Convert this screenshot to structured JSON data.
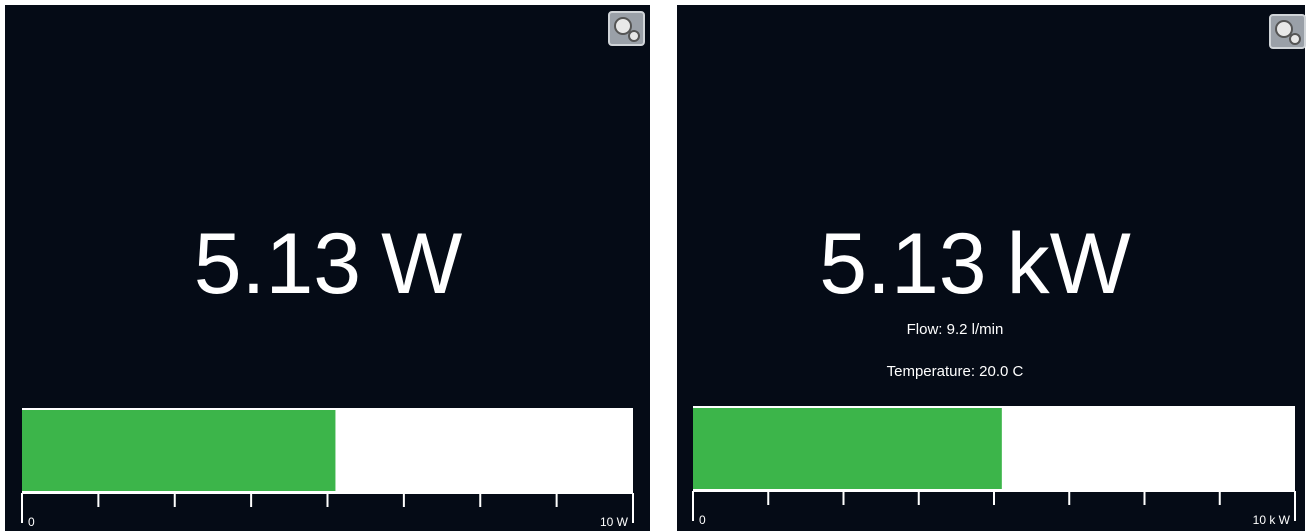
{
  "panels": [
    {
      "value": 5.13,
      "unit": "W",
      "details": [],
      "xlim": [
        0,
        10
      ],
      "xticks": [
        0,
        1.25,
        2.5,
        3.75,
        5,
        6.25,
        7.5,
        8.75,
        10
      ],
      "tick_labels": [
        0,
        {
          "value": 10,
          "label": "10 W"
        }
      ],
      "bar_color": "#3cb54a"
    },
    {
      "value": 5.13,
      "unit": "kW",
      "details": [
        "Flow: 9.2 l/min",
        "Temperature: 20.0 C"
      ],
      "xlim": [
        0,
        10
      ],
      "xticks": [
        0,
        1.25,
        2.5,
        3.75,
        5,
        6.25,
        7.5,
        8.75,
        10
      ],
      "tick_labels": [
        0,
        {
          "value": 10,
          "label": "10 k W"
        }
      ],
      "bar_color": "#3cb54a"
    }
  ]
}
